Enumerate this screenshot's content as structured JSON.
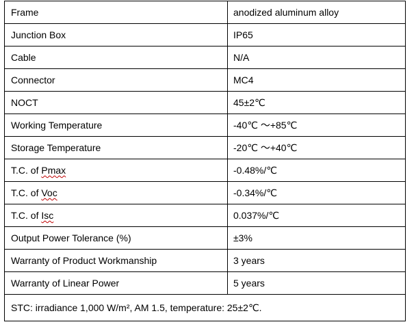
{
  "rows": [
    {
      "label": "Frame",
      "value": "anodized aluminum alloy"
    },
    {
      "label": "Junction Box",
      "value": "IP65"
    },
    {
      "label": "Cable",
      "value": "N/A"
    },
    {
      "label": "Connector",
      "value": "MC4"
    },
    {
      "label": "NOCT",
      "value": "45±2℃"
    },
    {
      "label": "Working Temperature",
      "value": "-40℃ ～+85℃"
    },
    {
      "label": "Storage Temperature",
      "value": "-20℃ ～+40℃"
    },
    {
      "label_prefix": "T.C. of ",
      "label_term": "Pmax",
      "value": "-0.48%/℃"
    },
    {
      "label_prefix": "T.C. of ",
      "label_term": "Voc",
      "value": "-0.34%/℃"
    },
    {
      "label_prefix": "T.C. of ",
      "label_term": "Isc",
      "value": "0.037%/℃"
    },
    {
      "label": "Output Power Tolerance (%)",
      "value": "±3%"
    },
    {
      "label": "Warranty of Product Workmanship",
      "value": "3 years"
    },
    {
      "label": "Warranty of Linear Power",
      "value": "5 years"
    }
  ],
  "footnote": "STC: irradiance 1,000 W/m², AM 1.5, temperature: 25±2℃."
}
